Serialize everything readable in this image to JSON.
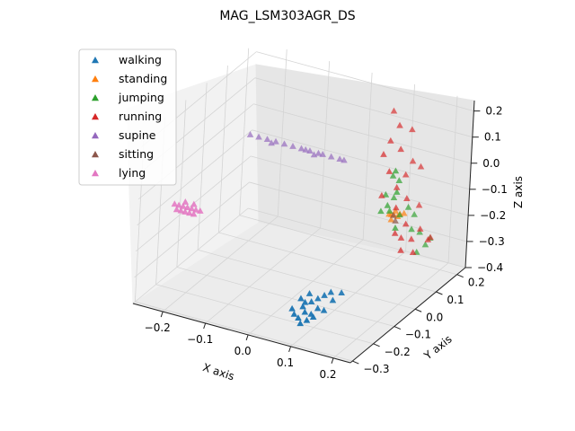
{
  "chart_data": {
    "type": "scatter",
    "projection": "3d",
    "title": "MAG_LSM303AGR_DS",
    "xlabel": "X axis",
    "ylabel": "Y axis",
    "zlabel": "Z axis",
    "xlim": [
      -0.27,
      0.24
    ],
    "ylim": [
      -0.31,
      0.24
    ],
    "zlim": [
      -0.4,
      0.24
    ],
    "xticks": [
      "−0.2",
      "−0.1",
      "0.0",
      "0.1",
      "0.2"
    ],
    "yticks": [
      "−0.3",
      "−0.2",
      "−0.1",
      "0.0",
      "0.1",
      "0.2"
    ],
    "zticks": [
      "−0.4",
      "−0.3",
      "−0.2",
      "−0.1",
      "0.0",
      "0.1",
      "0.2"
    ],
    "xtick_values": [
      -0.2,
      -0.1,
      0.0,
      0.1,
      0.2
    ],
    "ytick_values": [
      -0.3,
      -0.2,
      -0.1,
      0.0,
      0.1,
      0.2
    ],
    "ztick_values": [
      -0.4,
      -0.3,
      -0.2,
      -0.1,
      0.0,
      0.1,
      0.2
    ],
    "grid": true,
    "legend_position": "upper-left",
    "marker": "triangle",
    "series": [
      {
        "name": "walking",
        "color": "#1f77b4",
        "points": [
          [
            0.1,
            -0.28,
            -0.31
          ],
          [
            0.11,
            -0.27,
            -0.29
          ],
          [
            0.12,
            -0.26,
            -0.3
          ],
          [
            0.09,
            -0.28,
            -0.3
          ],
          [
            0.13,
            -0.25,
            -0.28
          ],
          [
            0.1,
            -0.26,
            -0.28
          ],
          [
            0.11,
            -0.24,
            -0.27
          ],
          [
            0.14,
            -0.24,
            -0.29
          ],
          [
            0.12,
            -0.28,
            -0.31
          ],
          [
            0.08,
            -0.27,
            -0.29
          ],
          [
            0.13,
            -0.27,
            -0.3
          ],
          [
            0.1,
            -0.25,
            -0.27
          ],
          [
            0.15,
            -0.22,
            -0.26
          ],
          [
            0.12,
            -0.23,
            -0.26
          ],
          [
            0.09,
            -0.25,
            -0.26
          ],
          [
            0.14,
            -0.21,
            -0.24
          ],
          [
            0.11,
            -0.29,
            -0.32
          ],
          [
            0.13,
            -0.22,
            -0.25
          ],
          [
            0.16,
            -0.2,
            -0.24
          ],
          [
            0.1,
            -0.23,
            -0.25
          ]
        ]
      },
      {
        "name": "standing",
        "color": "#ff7f0e",
        "points": [
          [
            0.15,
            0.05,
            -0.11
          ],
          [
            0.16,
            0.06,
            -0.12
          ],
          [
            0.15,
            0.07,
            -0.11
          ],
          [
            0.17,
            0.05,
            -0.1
          ],
          [
            0.16,
            0.04,
            -0.1
          ],
          [
            0.14,
            0.06,
            -0.12
          ],
          [
            0.17,
            0.07,
            -0.11
          ],
          [
            0.15,
            0.05,
            -0.13
          ]
        ]
      },
      {
        "name": "jumping",
        "color": "#2ca02c",
        "points": [
          [
            0.15,
            0.06,
            0.05
          ],
          [
            0.14,
            0.07,
            0.02
          ],
          [
            0.15,
            0.08,
            0.0
          ],
          [
            0.16,
            0.05,
            -0.02
          ],
          [
            0.13,
            0.06,
            -0.05
          ],
          [
            0.14,
            0.08,
            -0.07
          ],
          [
            0.17,
            0.09,
            -0.1
          ],
          [
            0.15,
            0.04,
            -0.09
          ],
          [
            0.16,
            0.07,
            -0.12
          ],
          [
            0.14,
            0.05,
            -0.08
          ],
          [
            0.18,
            0.1,
            -0.13
          ],
          [
            0.13,
            0.04,
            -0.1
          ],
          [
            0.17,
            0.03,
            -0.14
          ],
          [
            0.19,
            0.11,
            -0.2
          ],
          [
            0.2,
            0.12,
            -0.25
          ],
          [
            0.18,
            0.09,
            -0.18
          ],
          [
            0.21,
            0.12,
            -0.22
          ],
          [
            0.19,
            0.1,
            -0.27
          ]
        ]
      },
      {
        "name": "running",
        "color": "#d62728",
        "points": [
          [
            0.12,
            0.1,
            0.24
          ],
          [
            0.14,
            0.09,
            0.2
          ],
          [
            0.13,
            0.07,
            0.15
          ],
          [
            0.16,
            0.11,
            0.18
          ],
          [
            0.12,
            0.06,
            0.1
          ],
          [
            0.15,
            0.08,
            0.12
          ],
          [
            0.17,
            0.1,
            0.07
          ],
          [
            0.14,
            0.05,
            0.05
          ],
          [
            0.16,
            0.09,
            0.02
          ],
          [
            0.18,
            0.12,
            0.04
          ],
          [
            0.15,
            0.07,
            -0.02
          ],
          [
            0.13,
            0.04,
            -0.04
          ],
          [
            0.17,
            0.08,
            -0.06
          ],
          [
            0.19,
            0.1,
            -0.09
          ],
          [
            0.16,
            0.05,
            -0.08
          ],
          [
            0.18,
            0.06,
            -0.14
          ],
          [
            0.2,
            0.09,
            -0.17
          ],
          [
            0.17,
            0.03,
            -0.16
          ],
          [
            0.19,
            0.07,
            -0.2
          ],
          [
            0.21,
            0.11,
            -0.22
          ],
          [
            0.18,
            0.04,
            -0.18
          ],
          [
            0.2,
            0.06,
            -0.24
          ],
          [
            0.22,
            0.1,
            -0.2
          ],
          [
            0.19,
            0.02,
            -0.21
          ]
        ]
      },
      {
        "name": "supine",
        "color": "#9467bd",
        "points": [
          [
            -0.2,
            0.08,
            0.02
          ],
          [
            -0.18,
            0.08,
            0.02
          ],
          [
            -0.16,
            0.08,
            0.02
          ],
          [
            -0.14,
            0.08,
            0.02
          ],
          [
            -0.12,
            0.08,
            0.02
          ],
          [
            -0.1,
            0.08,
            0.02
          ],
          [
            -0.08,
            0.08,
            0.02
          ],
          [
            -0.07,
            0.08,
            0.02
          ],
          [
            -0.06,
            0.08,
            0.02
          ],
          [
            -0.04,
            0.08,
            0.02
          ],
          [
            -0.03,
            0.08,
            0.02
          ],
          [
            -0.01,
            0.08,
            0.02
          ],
          [
            0.01,
            0.08,
            0.02
          ],
          [
            0.02,
            0.08,
            0.02
          ],
          [
            -0.15,
            0.08,
            0.01
          ],
          [
            -0.05,
            0.08,
            0.01
          ]
        ]
      },
      {
        "name": "sitting",
        "color": "#8c564b",
        "points": [
          [
            0.16,
            0.05,
            -0.13
          ],
          [
            0.15,
            0.06,
            -0.12
          ]
        ]
      },
      {
        "name": "lying",
        "color": "#e377c2",
        "points": [
          [
            -0.25,
            -0.15,
            -0.12
          ],
          [
            -0.24,
            -0.15,
            -0.12
          ],
          [
            -0.23,
            -0.15,
            -0.12
          ],
          [
            -0.22,
            -0.15,
            -0.12
          ],
          [
            -0.21,
            -0.15,
            -0.12
          ],
          [
            -0.25,
            -0.16,
            -0.13
          ],
          [
            -0.24,
            -0.16,
            -0.13
          ],
          [
            -0.23,
            -0.16,
            -0.13
          ],
          [
            -0.22,
            -0.16,
            -0.13
          ],
          [
            -0.21,
            -0.16,
            -0.13
          ],
          [
            -0.24,
            -0.14,
            -0.11
          ],
          [
            -0.22,
            -0.14,
            -0.11
          ],
          [
            -0.2,
            -0.15,
            -0.12
          ],
          [
            -0.26,
            -0.15,
            -0.12
          ]
        ]
      }
    ]
  }
}
